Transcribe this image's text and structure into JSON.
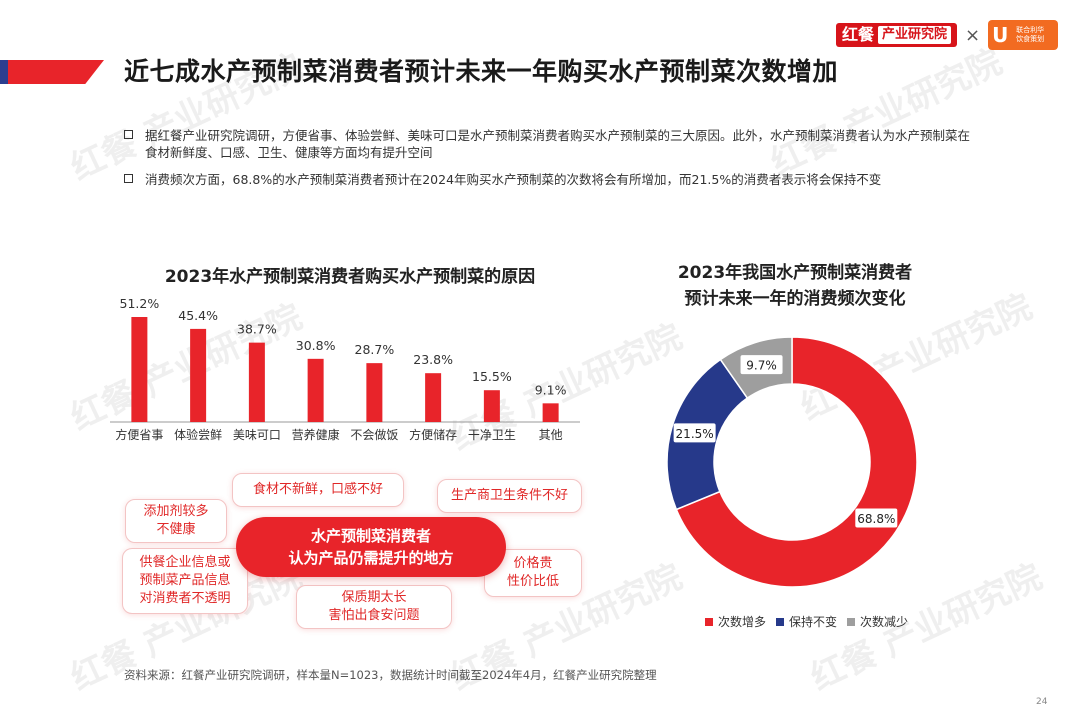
{
  "header": {
    "logo_brand_big": "红餐",
    "logo_brand_small": "产业研究院",
    "logo_times": "×",
    "partner_logo_glyph": "U",
    "partner_logo_text": [
      "联合利华",
      "饮食策划"
    ],
    "title": "近七成水产预制菜消费者预计未来一年购买水产预制菜次数增加"
  },
  "bullets": [
    "据红餐产业研究院调研，方便省事、体验尝鲜、美味可口是水产预制菜消费者购买水产预制菜的三大原因。此外，水产预制菜消费者认为水产预制菜在食材新鲜度、口感、卫生、健康等方面均有提升空间",
    "消费频次方面，68.8%的水产预制菜消费者预计在2024年购买水产预制菜的次数将会有所增加，而21.5%的消费者表示将会保持不变"
  ],
  "watermark_text": "红餐 产业研究院",
  "chart_data": [
    {
      "type": "bar",
      "title": "2023年水产预制菜消费者购买水产预制菜的原因",
      "categories": [
        "方便省事",
        "体验尝鲜",
        "美味可口",
        "营养健康",
        "不会做饭",
        "方便储存",
        "干净卫生",
        "其他"
      ],
      "values": [
        51.2,
        45.4,
        38.7,
        30.8,
        28.7,
        23.8,
        15.5,
        9.1
      ],
      "value_labels": [
        "51.2%",
        "45.4%",
        "38.7%",
        "30.8%",
        "28.7%",
        "23.8%",
        "15.5%",
        "9.1%"
      ],
      "unit": "%",
      "color": "#e8242a"
    },
    {
      "type": "pie",
      "donut": true,
      "title_lines": [
        "2023年我国水产预制菜消费者",
        "预计未来一年的消费频次变化"
      ],
      "categories": [
        "次数增多",
        "保持不变",
        "次数减少"
      ],
      "values": [
        68.8,
        21.5,
        9.7
      ],
      "value_labels": [
        "68.8%",
        "21.5%",
        "9.7%"
      ],
      "colors": [
        "#e8242a",
        "#26398a",
        "#9e9e9e"
      ],
      "legend_position": "bottom"
    }
  ],
  "callouts": {
    "center": [
      "水产预制菜消费者",
      "认为产品仍需提升的地方"
    ],
    "items": [
      {
        "key": "freshness",
        "lines": [
          "食材不新鲜，口感不好"
        ]
      },
      {
        "key": "hygiene",
        "lines": [
          "生产商卫生条件不好"
        ]
      },
      {
        "key": "additives",
        "lines": [
          "添加剂较多",
          "不健康"
        ]
      },
      {
        "key": "info",
        "lines": [
          "供餐企业信息或",
          "预制菜产品信息",
          "对消费者不透明"
        ]
      },
      {
        "key": "price",
        "lines": [
          "价格贵",
          "性价比低"
        ]
      },
      {
        "key": "shelf",
        "lines": [
          "保质期太长",
          "害怕出食安问题"
        ]
      }
    ]
  },
  "footer": {
    "source": "资料来源：红餐产业研究院调研，样本量N=1023，数据统计时间截至2024年4月，红餐产业研究院整理",
    "page": "24"
  }
}
